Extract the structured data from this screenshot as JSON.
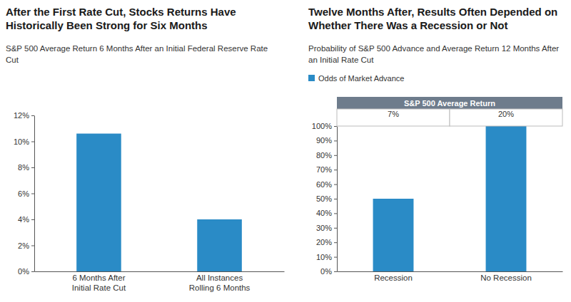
{
  "chart_data": [
    {
      "type": "bar",
      "title": "After the First Rate Cut, Stocks Returns Have Historically Been Strong for Six Months",
      "subtitle": "S&P 500 Average Return 6 Months After an Initial Federal Reserve Rate Cut",
      "categories": [
        "6 Months After Initial Rate Cut",
        "All Instances Rolling 6 Months"
      ],
      "values": [
        10.6,
        4.0
      ],
      "color": "#2a8bc6",
      "ylim": [
        0,
        12
      ],
      "yticks": [
        {
          "value": 0,
          "label": "0%"
        },
        {
          "value": 2,
          "label": "2%"
        },
        {
          "value": 4,
          "label": "4%"
        },
        {
          "value": 6,
          "label": "6%"
        },
        {
          "value": 8,
          "label": "8%"
        },
        {
          "value": 10,
          "label": "10%"
        },
        {
          "value": 12,
          "label": "12%"
        }
      ],
      "grid": false
    },
    {
      "type": "bar",
      "title": "Twelve Months After, Results Often Depended on Whether There Was a Recession or Not",
      "subtitle": "Probability of S&P 500 Advance and Average Return 12 Months After an Initial Rate Cut",
      "categories": [
        "Recession",
        "No Recession"
      ],
      "series": [
        {
          "name": "Odds of Market Advance",
          "color": "#2a8bc6",
          "values": [
            50,
            100
          ]
        }
      ],
      "average_return": {
        "title": "S&P 500 Average Return",
        "values": [
          7,
          20
        ],
        "value_labels": [
          "7%",
          "20%"
        ]
      },
      "ylim": [
        0,
        100
      ],
      "yticks": [
        {
          "value": 0,
          "label": "0%"
        },
        {
          "value": 10,
          "label": "10%"
        },
        {
          "value": 20,
          "label": "20%"
        },
        {
          "value": 30,
          "label": "30%"
        },
        {
          "value": 40,
          "label": "40%"
        },
        {
          "value": 50,
          "label": "50%"
        },
        {
          "value": 60,
          "label": "60%"
        },
        {
          "value": 70,
          "label": "70%"
        },
        {
          "value": 80,
          "label": "80%"
        },
        {
          "value": 90,
          "label": "90%"
        },
        {
          "value": 100,
          "label": "100%"
        }
      ],
      "legend": "top-left",
      "grid": false
    }
  ]
}
